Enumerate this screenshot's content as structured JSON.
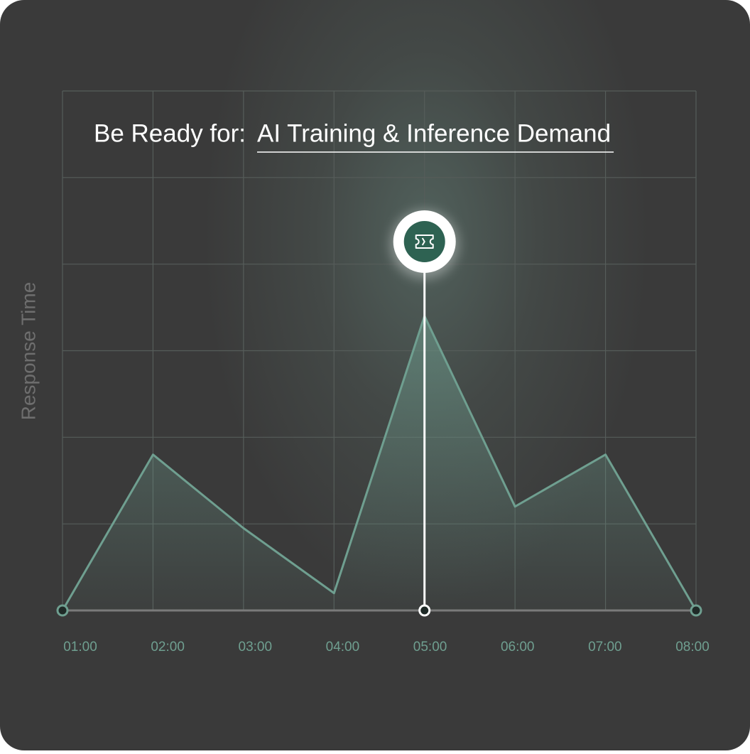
{
  "chart_data": {
    "type": "area",
    "title_prefix": "Be Ready for:",
    "title": "AI Training & Inference Demand",
    "y_label": "Response Time",
    "categories": [
      "01:00",
      "02:00",
      "03:00",
      "04:00",
      "05:00",
      "06:00",
      "07:00",
      "08:00"
    ],
    "values": [
      0,
      1.8,
      0.95,
      0.2,
      3.4,
      1.2,
      1.8,
      0
    ],
    "color": "#6f9f90",
    "ylim": [
      0,
      6
    ],
    "yticks": [
      0,
      1,
      2,
      3,
      4,
      5,
      6
    ],
    "grid": true,
    "highlight_index": 4
  }
}
